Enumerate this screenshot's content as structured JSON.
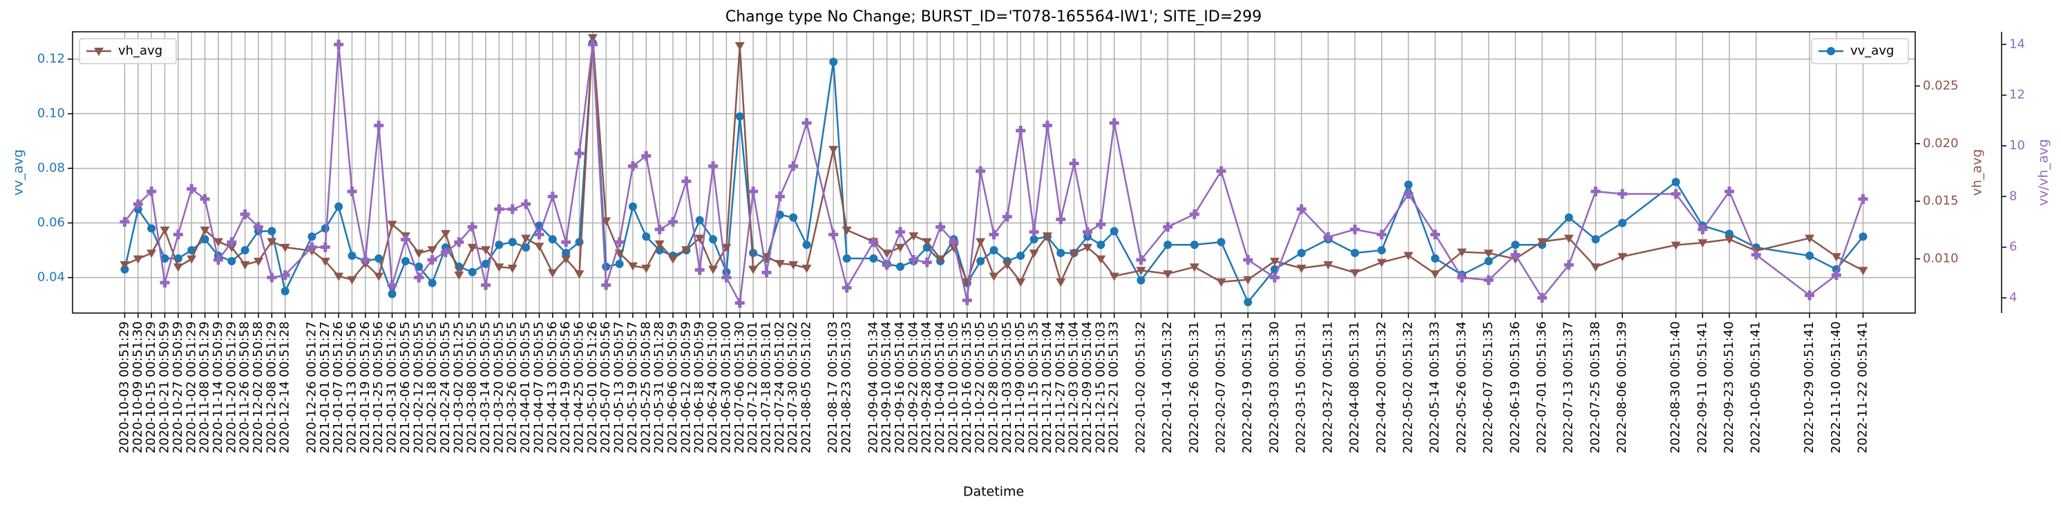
{
  "chart_data": {
    "type": "line",
    "title": "Change type No Change; BURST_ID='T078-165564-IW1'; SITE_ID=299",
    "xlabel": "Datetime",
    "ylabel": "vv_avg",
    "y2label": "vh_avg",
    "y3label": "vv/vh_avg",
    "x": [
      "2020-10-03 00:51:29",
      "2020-10-09 00:51:30",
      "2020-10-15 00:51:29",
      "2020-10-21 00:50:59",
      "2020-10-27 00:50:59",
      "2020-11-02 00:51:29",
      "2020-11-08 00:51:29",
      "2020-11-14 00:50:59",
      "2020-11-20 00:51:29",
      "2020-11-26 00:50:58",
      "2020-12-02 00:50:58",
      "2020-12-08 00:51:29",
      "2020-12-14 00:51:28",
      "2020-12-26 00:51:27",
      "2021-01-01 00:51:27",
      "2021-01-07 00:51:26",
      "2021-01-13 00:50:56",
      "2021-01-19 00:51:26",
      "2021-01-25 00:50:56",
      "2021-01-31 00:51:26",
      "2021-02-06 00:50:55",
      "2021-02-12 00:50:55",
      "2021-02-18 00:50:55",
      "2021-02-24 00:50:55",
      "2021-03-02 00:51:25",
      "2021-03-08 00:50:55",
      "2021-03-14 00:50:55",
      "2021-03-20 00:50:55",
      "2021-03-26 00:50:55",
      "2021-04-01 00:50:55",
      "2021-04-07 00:50:55",
      "2021-04-13 00:50:56",
      "2021-04-19 00:50:56",
      "2021-04-25 00:50:56",
      "2021-05-01 00:51:26",
      "2021-05-07 00:50:56",
      "2021-05-13 00:50:57",
      "2021-05-19 00:50:57",
      "2021-05-25 00:50:58",
      "2021-05-31 00:51:28",
      "2021-06-06 00:50:59",
      "2021-06-12 00:50:59",
      "2021-06-18 00:50:59",
      "2021-06-24 00:51:00",
      "2021-06-30 00:51:00",
      "2021-07-06 00:51:30",
      "2021-07-12 00:51:01",
      "2021-07-18 00:51:01",
      "2021-07-24 00:51:02",
      "2021-07-30 00:51:02",
      "2021-08-05 00:51:02",
      "2021-08-17 00:51:03",
      "2021-08-23 00:51:03",
      "2021-09-04 00:51:34",
      "2021-09-10 00:51:04",
      "2021-09-16 00:51:04",
      "2021-09-22 00:51:04",
      "2021-09-28 00:51:04",
      "2021-10-04 00:51:04",
      "2021-10-10 00:51:05",
      "2021-10-16 00:51:35",
      "2021-10-22 00:51:05",
      "2021-10-28 00:51:05",
      "2021-11-03 00:51:05",
      "2021-11-09 00:51:05",
      "2021-11-15 00:51:35",
      "2021-11-21 00:51:04",
      "2021-11-27 00:51:34",
      "2021-12-03 00:51:04",
      "2021-12-09 00:51:04",
      "2021-12-15 00:51:03",
      "2021-12-21 00:51:33",
      "2022-01-02 00:51:32",
      "2022-01-14 00:51:32",
      "2022-01-26 00:51:31",
      "2022-02-07 00:51:31",
      "2022-02-19 00:51:31",
      "2022-03-03 00:51:30",
      "2022-03-15 00:51:31",
      "2022-03-27 00:51:31",
      "2022-04-08 00:51:31",
      "2022-04-20 00:51:32",
      "2022-05-02 00:51:32",
      "2022-05-14 00:51:33",
      "2022-05-26 00:51:34",
      "2022-06-07 00:51:35",
      "2022-06-19 00:51:36",
      "2022-07-01 00:51:36",
      "2022-07-13 00:51:37",
      "2022-07-25 00:51:38",
      "2022-08-06 00:51:39",
      "2022-08-30 00:51:40",
      "2022-09-11 00:51:41",
      "2022-09-23 00:51:40",
      "2022-10-05 00:51:41",
      "2022-10-29 00:51:41",
      "2022-11-10 00:51:40",
      "2022-11-22 00:51:41"
    ],
    "series": [
      {
        "name": "vv_avg",
        "color": "#1f77b4",
        "marker": "o",
        "axis": "y",
        "legend": "upper right",
        "values": [
          0.043,
          0.065,
          0.058,
          0.047,
          0.047,
          0.05,
          0.054,
          0.048,
          0.046,
          0.05,
          0.057,
          0.057,
          0.035,
          0.055,
          0.058,
          0.066,
          0.048,
          0.046,
          0.047,
          0.034,
          0.046,
          0.044,
          0.038,
          0.051,
          0.044,
          0.042,
          0.045,
          0.052,
          0.053,
          0.051,
          0.059,
          0.054,
          0.049,
          0.053,
          0.126,
          0.044,
          0.045,
          0.066,
          0.055,
          0.05,
          0.048,
          0.05,
          0.061,
          0.054,
          0.042,
          0.099,
          0.049,
          0.047,
          0.063,
          0.062,
          0.052,
          0.119,
          0.047,
          0.047,
          0.045,
          0.044,
          0.046,
          0.051,
          0.046,
          0.054,
          0.038,
          0.046,
          0.05,
          0.046,
          0.048,
          0.054,
          0.055,
          0.049,
          0.049,
          0.055,
          0.052,
          0.057,
          0.039,
          0.052,
          0.052,
          0.053,
          0.031,
          0.043,
          0.049,
          0.054,
          0.049,
          0.05,
          0.074,
          0.047,
          0.041,
          0.046,
          0.052,
          0.052,
          0.062,
          0.054,
          0.06,
          0.075,
          0.059,
          0.056,
          0.051,
          0.048,
          0.043,
          0.055
        ]
      },
      {
        "name": "vh_avg",
        "color": "#8c564b",
        "marker": "v",
        "axis": "y2",
        "legend": "upper left",
        "values": [
          0.0095,
          0.01,
          0.0105,
          0.0125,
          0.0093,
          0.01,
          0.0125,
          0.0115,
          0.011,
          0.0095,
          0.0098,
          0.0115,
          0.011,
          0.0107,
          0.0098,
          0.0085,
          0.0082,
          0.0096,
          0.0085,
          0.013,
          0.012,
          0.0105,
          0.0108,
          0.0122,
          0.0086,
          0.011,
          0.0108,
          0.0093,
          0.0092,
          0.0118,
          0.0111,
          0.0088,
          0.01,
          0.0087,
          0.0292,
          0.0133,
          0.0105,
          0.0094,
          0.0092,
          0.0113,
          0.01,
          0.0108,
          0.0118,
          0.0091,
          0.011,
          0.0285,
          0.0091,
          0.0102,
          0.0096,
          0.0095,
          0.0092,
          0.0195,
          0.0125,
          0.0115,
          0.0105,
          0.011,
          0.012,
          0.0115,
          0.01,
          0.011,
          0.008,
          0.0115,
          0.0085,
          0.0095,
          0.008,
          0.0105,
          0.012,
          0.008,
          0.0105,
          0.011,
          0.01,
          0.0085,
          0.009,
          0.0087,
          0.0093,
          0.008,
          0.0082,
          0.0098,
          0.0092,
          0.0095,
          0.0088,
          0.0097,
          0.0103,
          0.0087,
          0.0106,
          0.0105,
          0.01,
          0.0115,
          0.0118,
          0.0093,
          0.0102,
          0.0112,
          0.0114,
          0.0117,
          0.0107,
          0.0118,
          0.0102,
          0.009
        ]
      },
      {
        "color": "#9467bd",
        "marker": "P",
        "axis": "y3",
        "values": [
          7.0,
          7.7,
          8.2,
          4.6,
          6.5,
          8.3,
          7.9,
          5.5,
          6.2,
          7.3,
          6.8,
          4.8,
          4.9,
          6.0,
          6.0,
          14.0,
          8.2,
          5.5,
          10.8,
          4.5,
          6.3,
          4.8,
          5.5,
          5.8,
          6.2,
          6.8,
          4.5,
          7.5,
          7.5,
          7.7,
          6.5,
          8.0,
          6.2,
          9.7,
          14.0,
          4.5,
          6.2,
          9.2,
          9.6,
          6.7,
          7.0,
          8.6,
          5.1,
          9.2,
          4.8,
          3.8,
          8.2,
          5.0,
          8.0,
          9.2,
          10.9,
          6.5,
          4.4,
          6.2,
          5.3,
          6.6,
          5.5,
          5.4,
          6.8,
          6.2,
          3.9,
          9.0,
          6.5,
          7.2,
          10.6,
          6.6,
          10.8,
          7.1,
          9.3,
          6.6,
          6.9,
          10.9,
          5.5,
          6.8,
          7.3,
          9.0,
          5.5,
          4.8,
          7.5,
          6.4,
          6.7,
          6.5,
          8.1,
          6.5,
          4.8,
          4.7,
          5.7,
          4.0,
          5.3,
          8.2,
          8.1,
          8.1,
          6.7,
          8.2,
          5.7,
          4.1,
          4.9,
          7.9
        ]
      }
    ],
    "ylim": [
      0.027,
      0.13
    ],
    "yticks": [
      0.04,
      0.06,
      0.08,
      {
        "value": 0.1,
        "label": "0.10"
      },
      0.12
    ],
    "y2lim": [
      0.0053,
      0.0297
    ],
    "y2ticks": [
      {
        "value": 0.01,
        "label": "0.010"
      },
      0.015,
      {
        "value": 0.02,
        "label": "0.020"
      },
      0.025
    ],
    "y3lim": [
      3.4,
      14.5
    ],
    "y3ticks": [
      4,
      6,
      8,
      10,
      12,
      14
    ],
    "grid": true
  }
}
